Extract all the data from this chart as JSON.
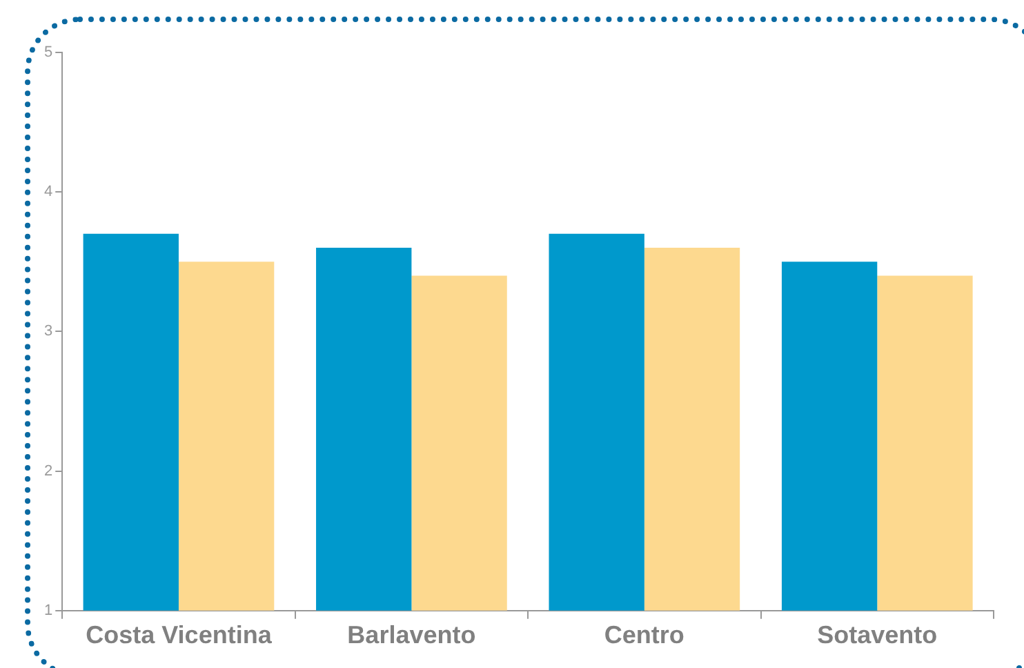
{
  "chart_data": {
    "type": "bar",
    "categories": [
      "Costa Vicentina",
      "Barlavento",
      "Centro",
      "Sotavento"
    ],
    "series": [
      {
        "color": "#0099cc",
        "values": [
          3.7,
          3.6,
          3.7,
          3.5
        ]
      },
      {
        "color": "#fdd98f",
        "values": [
          3.5,
          3.4,
          3.6,
          3.4
        ]
      }
    ],
    "ylim": [
      1,
      5
    ],
    "yticks": [
      1,
      2,
      3,
      4,
      5
    ],
    "grid": false,
    "legend": false
  }
}
